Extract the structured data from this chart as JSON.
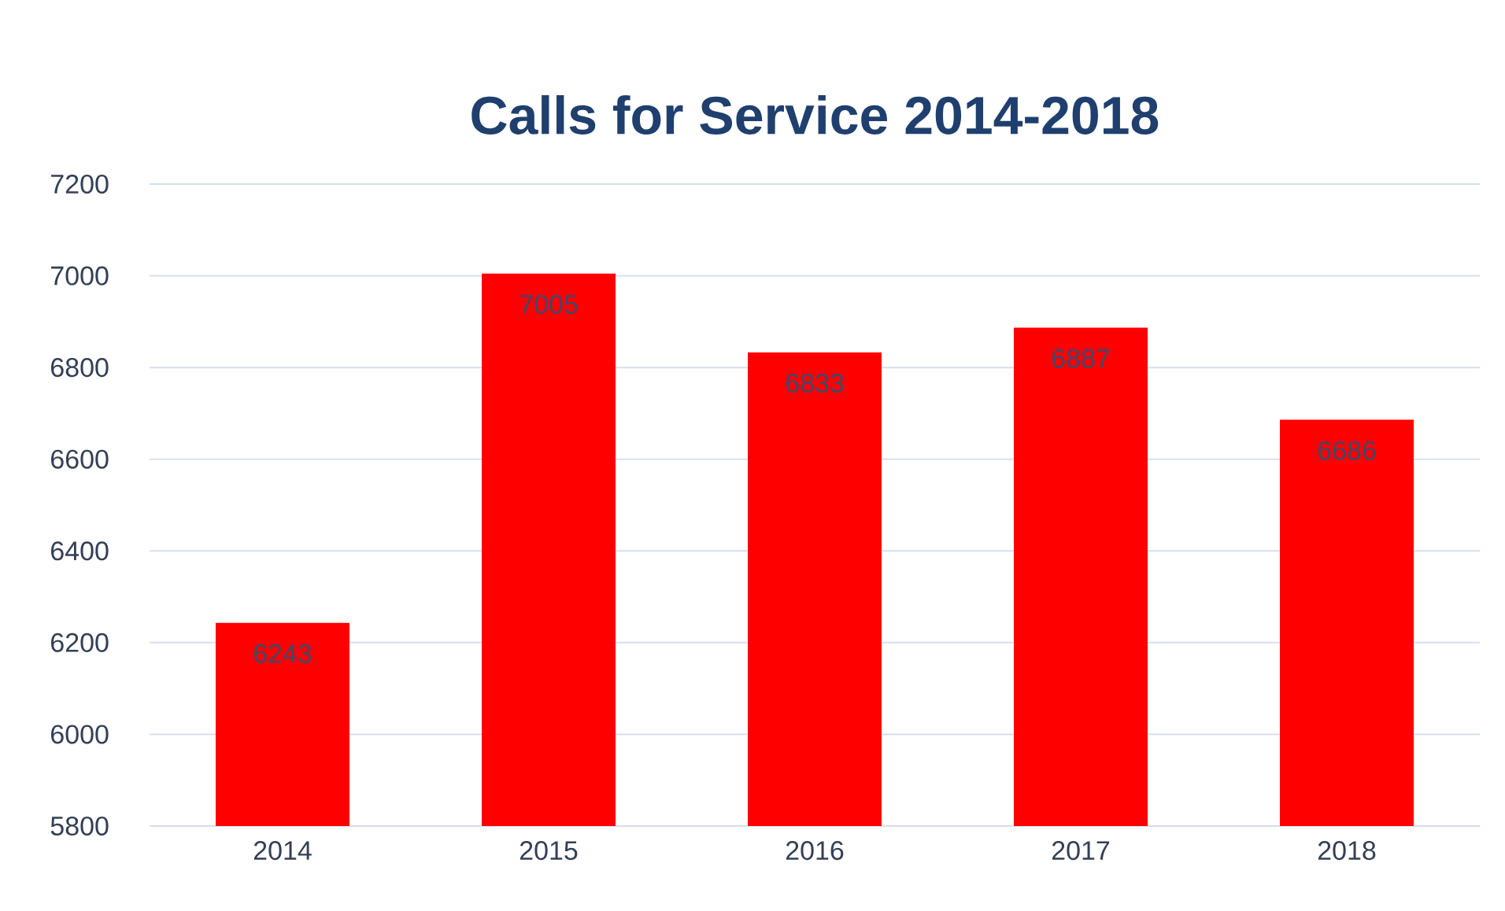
{
  "chart_data": {
    "type": "bar",
    "title": "Calls for Service 2014-2018",
    "categories": [
      "2014",
      "2015",
      "2016",
      "2017",
      "2018"
    ],
    "values": [
      6243,
      7005,
      6833,
      6887,
      6686
    ],
    "color": "#ff0000",
    "ylim": [
      5800,
      7200
    ],
    "yticks": [
      5800,
      6000,
      6200,
      6400,
      6600,
      6800,
      7000,
      7200
    ],
    "grid": "y",
    "data_labels": true
  }
}
